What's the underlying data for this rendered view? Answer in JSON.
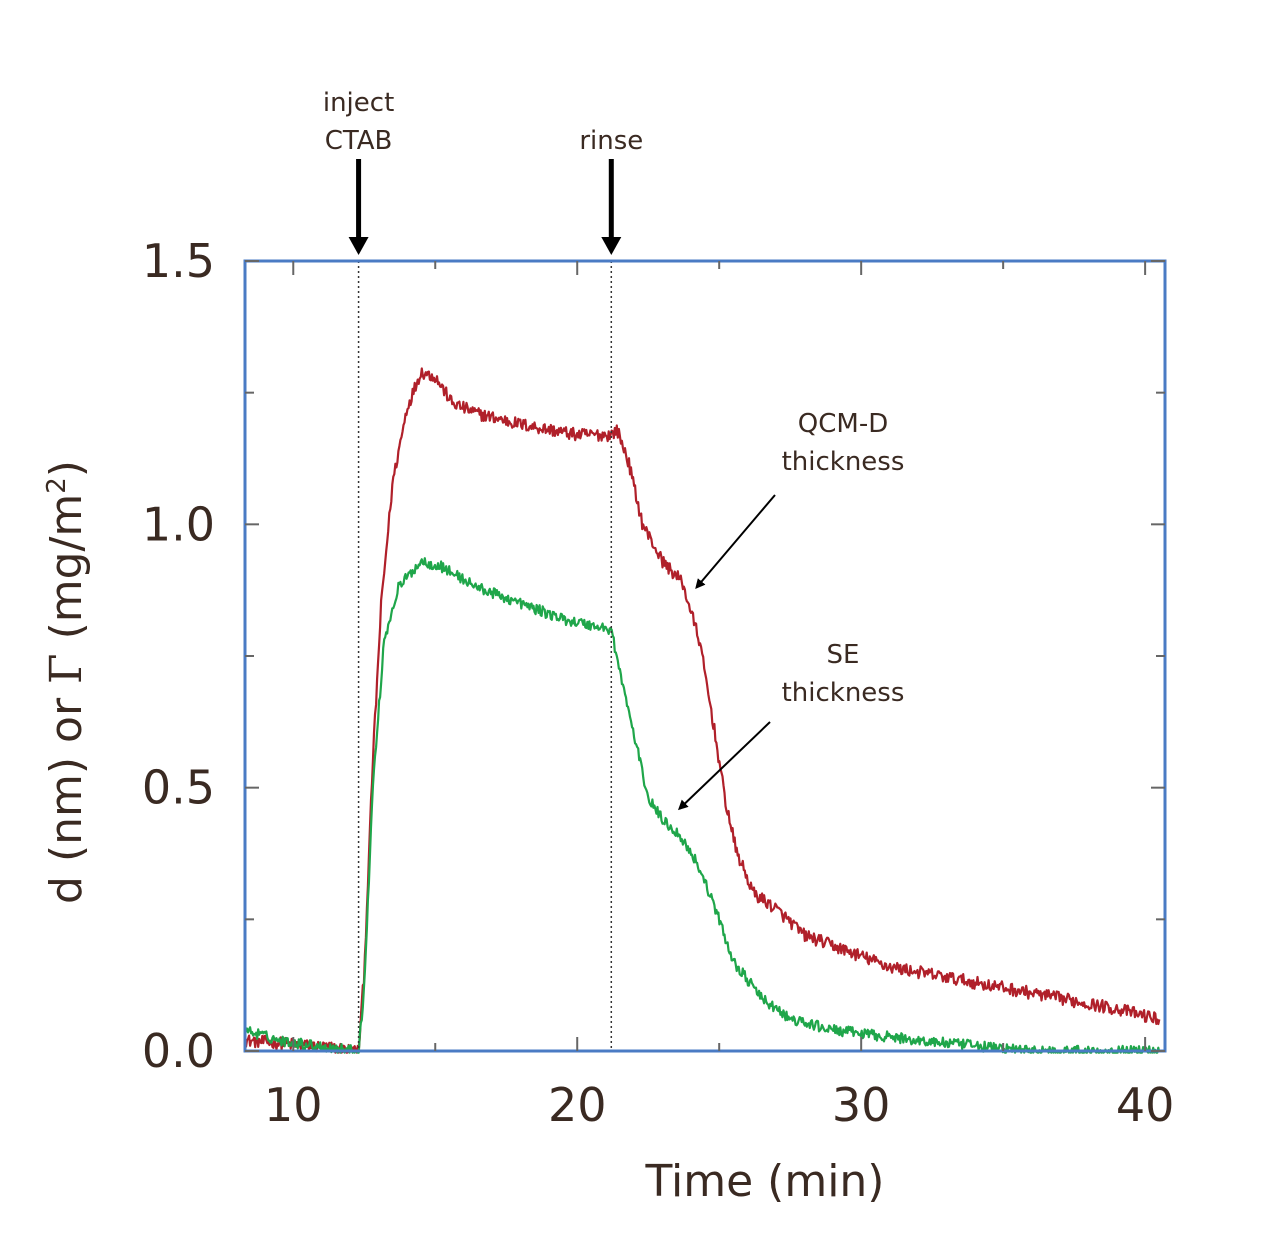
{
  "chart_data": {
    "type": "line",
    "title": "",
    "xlabel": "Time (min)",
    "ylabel_parts": [
      "d (nm) or ",
      "Γ",
      " (mg/m",
      "2",
      ")"
    ],
    "xlim": [
      8.3,
      40.7
    ],
    "ylim": [
      0,
      1.5
    ],
    "x_ticks": [
      10,
      20,
      30,
      40
    ],
    "x_tick_labels": [
      "10",
      "20",
      "30",
      "40"
    ],
    "x_minor_ticks": [
      15,
      25,
      35
    ],
    "y_ticks": [
      0,
      0.5,
      1.0,
      1.5
    ],
    "y_tick_labels": [
      "0.0",
      "0.5",
      "1.0",
      "1.5"
    ],
    "y_minor_ticks": [
      0.25,
      0.75,
      1.25
    ],
    "grid": false,
    "frame_color": "#4a7bc4",
    "events": [
      {
        "label_lines": [
          "inject",
          "CTAB"
        ],
        "x": 12.3
      },
      {
        "label_lines": [
          "rinse"
        ],
        "x": 21.2
      }
    ],
    "series": [
      {
        "color": "#b0202a",
        "noise": 0.012,
        "points": [
          [
            8.3,
            0.02
          ],
          [
            9.5,
            0.015
          ],
          [
            11.5,
            0.005
          ],
          [
            12.3,
            0.0
          ],
          [
            12.5,
            0.15
          ],
          [
            12.8,
            0.55
          ],
          [
            13.1,
            0.85
          ],
          [
            13.5,
            1.08
          ],
          [
            14.0,
            1.22
          ],
          [
            14.5,
            1.29
          ],
          [
            15.0,
            1.28
          ],
          [
            15.6,
            1.23
          ],
          [
            16.5,
            1.21
          ],
          [
            18.0,
            1.19
          ],
          [
            20.0,
            1.17
          ],
          [
            21.2,
            1.17
          ],
          [
            21.4,
            1.18
          ],
          [
            21.8,
            1.12
          ],
          [
            22.3,
            1.0
          ],
          [
            23.0,
            0.93
          ],
          [
            23.7,
            0.89
          ],
          [
            24.3,
            0.78
          ],
          [
            24.8,
            0.62
          ],
          [
            25.2,
            0.48
          ],
          [
            25.6,
            0.38
          ],
          [
            26.2,
            0.3
          ],
          [
            27.0,
            0.27
          ],
          [
            28.0,
            0.22
          ],
          [
            29.5,
            0.19
          ],
          [
            31.0,
            0.16
          ],
          [
            33.0,
            0.14
          ],
          [
            35.0,
            0.12
          ],
          [
            37.0,
            0.1
          ],
          [
            39.0,
            0.08
          ],
          [
            40.5,
            0.06
          ]
        ]
      },
      {
        "color": "#1fa64a",
        "noise": 0.01,
        "points": [
          [
            8.3,
            0.04
          ],
          [
            9.5,
            0.02
          ],
          [
            11.5,
            0.005
          ],
          [
            12.3,
            0.0
          ],
          [
            12.5,
            0.12
          ],
          [
            12.8,
            0.5
          ],
          [
            13.2,
            0.78
          ],
          [
            13.7,
            0.88
          ],
          [
            14.5,
            0.93
          ],
          [
            15.2,
            0.92
          ],
          [
            16.5,
            0.88
          ],
          [
            18.0,
            0.85
          ],
          [
            19.5,
            0.82
          ],
          [
            21.2,
            0.8
          ],
          [
            21.5,
            0.72
          ],
          [
            22.0,
            0.6
          ],
          [
            22.5,
            0.48
          ],
          [
            23.0,
            0.44
          ],
          [
            23.6,
            0.41
          ],
          [
            24.2,
            0.36
          ],
          [
            24.8,
            0.28
          ],
          [
            25.5,
            0.17
          ],
          [
            26.5,
            0.1
          ],
          [
            27.5,
            0.06
          ],
          [
            29.0,
            0.04
          ],
          [
            30.5,
            0.03
          ],
          [
            32.0,
            0.02
          ],
          [
            34.0,
            0.01
          ],
          [
            36.0,
            0.0
          ],
          [
            38.0,
            0.0
          ],
          [
            40.5,
            0.0
          ]
        ]
      }
    ],
    "annotations": [
      {
        "label_lines": [
          "QCM-D",
          "thickness"
        ],
        "points_to": [
          24.2,
          0.88
        ]
      },
      {
        "label_lines": [
          "SE",
          "thickness"
        ],
        "points_to": [
          23.6,
          0.46
        ]
      }
    ]
  }
}
